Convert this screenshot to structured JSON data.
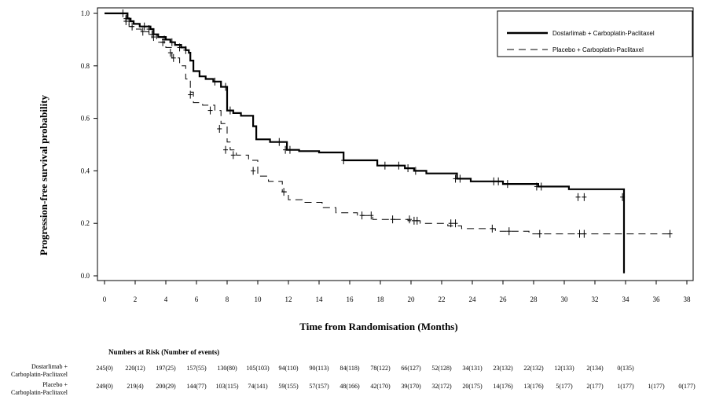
{
  "chart_data": {
    "type": "line",
    "xlabel": "Time from Randomisation (Months)",
    "ylabel": "Progression-free survival probability",
    "xlim": [
      0,
      38
    ],
    "ylim": [
      0.0,
      1.0
    ],
    "xticks": [
      "0",
      "2",
      "4",
      "6",
      "8",
      "10",
      "12",
      "14",
      "16",
      "18",
      "20",
      "22",
      "24",
      "26",
      "28",
      "30",
      "32",
      "34",
      "36",
      "38"
    ],
    "yticks": [
      "0.0",
      "0.2",
      "0.4",
      "0.6",
      "0.8",
      "1.0"
    ],
    "legend_position": "top-right",
    "series": [
      {
        "name": "Dostarlimab + Carboplatin-Paclitaxel",
        "style": "solid",
        "x": [
          0,
          1.3,
          1.5,
          1.7,
          1.9,
          2.3,
          2.7,
          3.0,
          3.2,
          3.5,
          4.0,
          4.3,
          4.6,
          5.0,
          5.3,
          5.5,
          5.6,
          5.8,
          6.2,
          6.6,
          7.1,
          7.6,
          8.0,
          8.4,
          8.9,
          9.4,
          9.7,
          9.9,
          10.8,
          11.9,
          12.7,
          14.0,
          15.6,
          17.8,
          18.7,
          19.6,
          20.2,
          21.0,
          23.0,
          23.9,
          26.0,
          28.3,
          30.3,
          33.9,
          33.9
        ],
        "y": [
          1.0,
          1.0,
          0.98,
          0.97,
          0.96,
          0.95,
          0.95,
          0.94,
          0.92,
          0.91,
          0.9,
          0.89,
          0.88,
          0.87,
          0.86,
          0.85,
          0.82,
          0.78,
          0.76,
          0.75,
          0.74,
          0.72,
          0.63,
          0.62,
          0.61,
          0.61,
          0.57,
          0.52,
          0.51,
          0.48,
          0.475,
          0.47,
          0.44,
          0.42,
          0.42,
          0.41,
          0.4,
          0.39,
          0.37,
          0.36,
          0.35,
          0.34,
          0.33,
          0.3,
          0.01
        ],
        "censor_x": [
          1.2,
          1.4,
          1.6,
          2.6,
          2.9,
          3.1,
          3.9,
          4.4,
          4.9,
          5.3,
          7.2,
          7.9,
          8.2,
          11.4,
          11.8,
          12.1,
          15.6,
          18.3,
          19.2,
          19.8,
          20.3,
          22.9,
          23.2,
          25.4,
          25.7,
          26.3,
          28.2,
          28.5,
          30.9,
          31.3,
          33.8
        ],
        "censor_y": [
          1.0,
          0.98,
          0.97,
          0.95,
          0.94,
          0.92,
          0.9,
          0.89,
          0.87,
          0.86,
          0.74,
          0.72,
          0.63,
          0.51,
          0.48,
          0.48,
          0.44,
          0.42,
          0.42,
          0.41,
          0.4,
          0.37,
          0.37,
          0.36,
          0.36,
          0.35,
          0.34,
          0.34,
          0.3,
          0.3,
          0.3
        ]
      },
      {
        "name": "Placebo + Carboplatin-Paclitaxel",
        "style": "dashed",
        "x": [
          0,
          1.2,
          1.4,
          1.6,
          2.0,
          2.4,
          2.9,
          3.4,
          4.0,
          4.4,
          4.9,
          5.3,
          5.6,
          5.8,
          6.4,
          7.2,
          7.6,
          8.0,
          8.2,
          8.6,
          9.4,
          10.0,
          10.7,
          11.6,
          12.0,
          12.9,
          14.2,
          15.1,
          16.5,
          17.5,
          19.8,
          20.6,
          22.4,
          23.3,
          25.5,
          27.7,
          36.9
        ],
        "y": [
          1.0,
          1.0,
          0.97,
          0.95,
          0.94,
          0.93,
          0.92,
          0.89,
          0.87,
          0.83,
          0.8,
          0.75,
          0.7,
          0.66,
          0.65,
          0.63,
          0.58,
          0.51,
          0.48,
          0.46,
          0.44,
          0.38,
          0.36,
          0.32,
          0.29,
          0.28,
          0.26,
          0.24,
          0.23,
          0.215,
          0.21,
          0.2,
          0.19,
          0.18,
          0.17,
          0.16,
          0.16
        ],
        "censor_x": [
          1.4,
          1.8,
          2.5,
          3.2,
          3.8,
          4.3,
          4.5,
          5.6,
          6.9,
          7.5,
          7.9,
          8.4,
          9.7,
          11.7,
          16.8,
          17.4,
          18.8,
          19.9,
          20.2,
          20.4,
          22.6,
          22.9,
          25.3,
          26.4,
          28.4,
          31.0,
          31.3,
          36.9
        ],
        "censor_y": [
          0.97,
          0.95,
          0.93,
          0.91,
          0.89,
          0.85,
          0.83,
          0.69,
          0.63,
          0.56,
          0.48,
          0.46,
          0.4,
          0.32,
          0.23,
          0.23,
          0.215,
          0.215,
          0.21,
          0.21,
          0.2,
          0.2,
          0.18,
          0.17,
          0.16,
          0.16,
          0.16,
          0.16
        ]
      }
    ]
  },
  "risk_table": {
    "title": "Numbers at Risk (Number of events)",
    "times": [
      0,
      2,
      4,
      6,
      8,
      10,
      12,
      14,
      16,
      18,
      20,
      22,
      24,
      26,
      28,
      30,
      32,
      34,
      36,
      38
    ],
    "rows": [
      {
        "label_line1": "Dostarlimab +",
        "label_line2": "Carboplatin-Paclitaxel",
        "values": [
          "245(0)",
          "220(12)",
          "197(25)",
          "157(55)",
          "130(80)",
          "105(103)",
          "94(110)",
          "90(113)",
          "84(118)",
          "78(122)",
          "66(127)",
          "52(128)",
          "34(131)",
          "23(132)",
          "22(132)",
          "12(133)",
          "2(134)",
          "0(135)",
          "",
          ""
        ]
      },
      {
        "label_line1": "Placebo +",
        "label_line2": "Carboplatin-Paclitaxel",
        "values": [
          "249(0)",
          "219(4)",
          "200(29)",
          "144(77)",
          "103(115)",
          "74(141)",
          "59(155)",
          "57(157)",
          "48(166)",
          "42(170)",
          "39(170)",
          "32(172)",
          "20(175)",
          "14(176)",
          "13(176)",
          "5(177)",
          "2(177)",
          "1(177)",
          "1(177)",
          "0(177)"
        ]
      }
    ]
  }
}
